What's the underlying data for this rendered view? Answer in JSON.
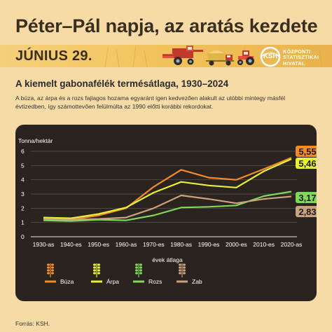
{
  "header": {
    "title": "Péter–Pál napja, az aratás kezdete",
    "date_label": "JÚNIUS 29.",
    "org_logo": "KSH",
    "org_name_lines": [
      "KÖZPONTI",
      "STATISZTIKAI",
      "HIVATAL"
    ]
  },
  "subtitle": "A kiemelt gabonafélék termésátlaga, 1930–2024",
  "description": "A búza, az árpa és a rozs fajlagos hozama egyaránt igen kedvezően alakult az utóbbi mintegy másfél évtizedben, így számottevően felülmúlta az 1990 előtti korábbi rekordokat.",
  "source": "Forrás: KSH.",
  "icons": [
    "harvester-icon",
    "truck-icon",
    "tractor-icon"
  ],
  "colors": {
    "background": "#f7dba7",
    "panel": "#2a2320",
    "buza": "#f28c28",
    "arpa": "#e6ef3a",
    "rozs": "#7ed957",
    "zab": "#c9a27e"
  },
  "chart_data": {
    "type": "line",
    "ylabel": "Tonna/hektár",
    "xlabel": "évek átlaga",
    "ylim": [
      0,
      6
    ],
    "yticks": [
      0,
      1,
      2,
      3,
      4,
      5,
      6
    ],
    "categories": [
      "1930-as",
      "1940-es",
      "1950-es",
      "1960-as",
      "1970-es",
      "1980-as",
      "1990-es",
      "2000-es",
      "2010-es",
      "2020-as"
    ],
    "legend_position": "bottom",
    "series": [
      {
        "name": "Búza",
        "color": "#f28c28",
        "values": [
          1.3,
          1.2,
          1.5,
          2.0,
          3.5,
          4.7,
          4.15,
          4.0,
          4.75,
          5.55
        ],
        "end_label": "5,55"
      },
      {
        "name": "Árpa",
        "color": "#e6ef3a",
        "values": [
          1.35,
          1.3,
          1.6,
          2.05,
          3.1,
          3.85,
          3.6,
          3.45,
          4.6,
          5.46
        ],
        "end_label": "5,46"
      },
      {
        "name": "Rozs",
        "color": "#7ed957",
        "values": [
          1.15,
          1.1,
          1.2,
          1.15,
          1.5,
          2.05,
          2.1,
          2.2,
          2.85,
          3.17
        ],
        "end_label": "3,17"
      },
      {
        "name": "Zab",
        "color": "#c9a27e",
        "values": [
          1.25,
          1.2,
          1.25,
          1.35,
          2.0,
          2.9,
          2.65,
          2.35,
          2.65,
          2.83
        ],
        "end_label": "2,83"
      }
    ]
  }
}
